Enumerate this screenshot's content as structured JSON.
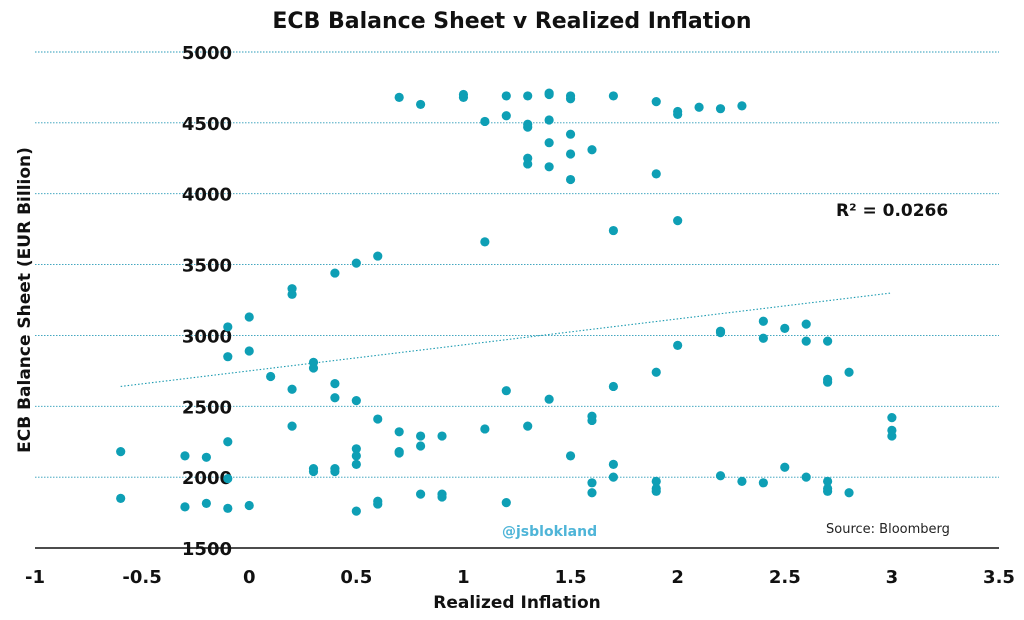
{
  "chart_data": {
    "type": "scatter",
    "title": "ECB Balance Sheet v Realized Inflation",
    "xlabel": "Realized Inflation",
    "ylabel": "ECB Balance Sheet (EUR Billion)",
    "xlim": [
      -1,
      3.5
    ],
    "ylim": [
      1500,
      5000
    ],
    "xticks": [
      "-1",
      "-0.5",
      "0",
      "0.5",
      "1",
      "1.5",
      "2",
      "2.5",
      "3",
      "3.5"
    ],
    "yticks": [
      "1500",
      "2000",
      "2500",
      "3000",
      "3500",
      "4000",
      "4500",
      "5000"
    ],
    "grid": "horizontal dotted",
    "point_color": "#0e9fb5",
    "trendline": {
      "type": "linear",
      "x": [
        -0.6,
        3.0
      ],
      "y": [
        2640,
        3300
      ]
    },
    "r_squared_label": "R² = 0.0266",
    "source": "Source:  Bloomberg",
    "watermark": "@jsblokland",
    "points": [
      [
        -0.6,
        2180
      ],
      [
        -0.6,
        1850
      ],
      [
        -0.3,
        2150
      ],
      [
        -0.3,
        1790
      ],
      [
        -0.2,
        2140
      ],
      [
        -0.2,
        1815
      ],
      [
        -0.1,
        3060
      ],
      [
        -0.1,
        2850
      ],
      [
        -0.1,
        2250
      ],
      [
        -0.1,
        1990
      ],
      [
        -0.1,
        1780
      ],
      [
        0.0,
        3130
      ],
      [
        0.0,
        2890
      ],
      [
        0.0,
        1800
      ],
      [
        0.1,
        2710
      ],
      [
        0.2,
        3330
      ],
      [
        0.2,
        3290
      ],
      [
        0.2,
        2620
      ],
      [
        0.2,
        2360
      ],
      [
        0.3,
        2810
      ],
      [
        0.3,
        2770
      ],
      [
        0.3,
        2060
      ],
      [
        0.3,
        2040
      ],
      [
        0.4,
        3440
      ],
      [
        0.4,
        2660
      ],
      [
        0.4,
        2560
      ],
      [
        0.4,
        2060
      ],
      [
        0.4,
        2040
      ],
      [
        0.5,
        3510
      ],
      [
        0.5,
        2540
      ],
      [
        0.5,
        2200
      ],
      [
        0.5,
        2150
      ],
      [
        0.5,
        2090
      ],
      [
        0.5,
        1760
      ],
      [
        0.6,
        3560
      ],
      [
        0.6,
        2410
      ],
      [
        0.6,
        1830
      ],
      [
        0.6,
        1810
      ],
      [
        0.7,
        4680
      ],
      [
        0.7,
        2320
      ],
      [
        0.7,
        2180
      ],
      [
        0.7,
        2170
      ],
      [
        0.8,
        4630
      ],
      [
        0.8,
        2290
      ],
      [
        0.8,
        2220
      ],
      [
        0.8,
        1880
      ],
      [
        0.9,
        2290
      ],
      [
        0.9,
        1880
      ],
      [
        0.9,
        1860
      ],
      [
        1.0,
        4700
      ],
      [
        1.0,
        4680
      ],
      [
        1.1,
        4510
      ],
      [
        1.1,
        3660
      ],
      [
        1.1,
        2340
      ],
      [
        1.2,
        4690
      ],
      [
        1.2,
        4550
      ],
      [
        1.2,
        2610
      ],
      [
        1.2,
        1820
      ],
      [
        1.3,
        4690
      ],
      [
        1.3,
        4490
      ],
      [
        1.3,
        4470
      ],
      [
        1.3,
        4250
      ],
      [
        1.3,
        4210
      ],
      [
        1.3,
        2360
      ],
      [
        1.4,
        4710
      ],
      [
        1.4,
        4700
      ],
      [
        1.4,
        4520
      ],
      [
        1.4,
        4360
      ],
      [
        1.4,
        4190
      ],
      [
        1.4,
        2550
      ],
      [
        1.5,
        4690
      ],
      [
        1.5,
        4670
      ],
      [
        1.5,
        4420
      ],
      [
        1.5,
        4280
      ],
      [
        1.5,
        4100
      ],
      [
        1.5,
        2150
      ],
      [
        1.6,
        4310
      ],
      [
        1.6,
        2430
      ],
      [
        1.6,
        2400
      ],
      [
        1.6,
        1960
      ],
      [
        1.6,
        1890
      ],
      [
        1.7,
        4690
      ],
      [
        1.7,
        3740
      ],
      [
        1.7,
        2640
      ],
      [
        1.7,
        2090
      ],
      [
        1.7,
        2000
      ],
      [
        1.9,
        4650
      ],
      [
        1.9,
        4140
      ],
      [
        1.9,
        2740
      ],
      [
        1.9,
        1970
      ],
      [
        1.9,
        1920
      ],
      [
        1.9,
        1900
      ],
      [
        2.0,
        4580
      ],
      [
        2.0,
        4560
      ],
      [
        2.0,
        3810
      ],
      [
        2.0,
        2930
      ],
      [
        2.1,
        4610
      ],
      [
        2.2,
        4600
      ],
      [
        2.2,
        3030
      ],
      [
        2.2,
        3020
      ],
      [
        2.2,
        2010
      ],
      [
        2.3,
        4620
      ],
      [
        2.3,
        1970
      ],
      [
        2.4,
        3100
      ],
      [
        2.4,
        2980
      ],
      [
        2.4,
        1960
      ],
      [
        2.5,
        3050
      ],
      [
        2.5,
        2070
      ],
      [
        2.6,
        3080
      ],
      [
        2.6,
        2960
      ],
      [
        2.6,
        2000
      ],
      [
        2.7,
        2960
      ],
      [
        2.7,
        2690
      ],
      [
        2.7,
        2670
      ],
      [
        2.7,
        1970
      ],
      [
        2.7,
        1920
      ],
      [
        2.7,
        1900
      ],
      [
        2.8,
        2740
      ],
      [
        2.8,
        1890
      ],
      [
        3.0,
        2420
      ],
      [
        3.0,
        2330
      ],
      [
        3.0,
        2290
      ]
    ]
  }
}
